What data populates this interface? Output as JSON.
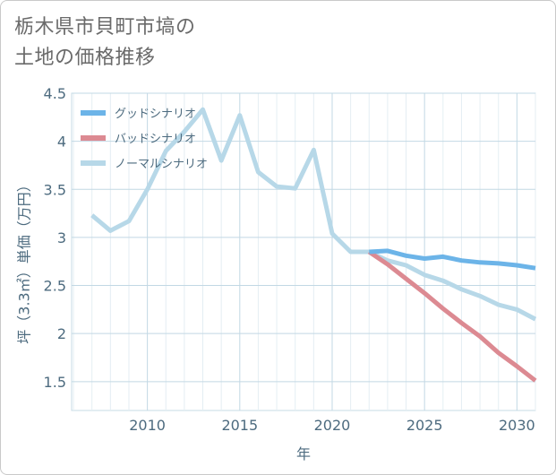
{
  "title": {
    "line1": "栃木県市貝町市塙の",
    "line2": "土地の価格推移"
  },
  "chart_data": {
    "type": "line",
    "xlabel": "年",
    "ylabel": "坪（3.3㎡）単価（万円）",
    "xlim": [
      2005.9,
      2031
    ],
    "ylim": [
      1.2,
      4.5
    ],
    "x_ticks": [
      2010,
      2015,
      2020,
      2025,
      2030
    ],
    "y_ticks": [
      1.5,
      2,
      2.5,
      3,
      3.5,
      4,
      4.5
    ],
    "y_tick_labels": [
      "1.5",
      "2",
      "2.5",
      "3",
      "3.5",
      "4",
      "4.5"
    ],
    "grid": true,
    "legend_position": "top-left",
    "series": [
      {
        "name": "グッドシナリオ",
        "color": "#6cb4e8",
        "x": [
          2022,
          2023,
          2024,
          2025,
          2026,
          2027,
          2028,
          2029,
          2030,
          2031
        ],
        "values": [
          2.85,
          2.86,
          2.81,
          2.78,
          2.8,
          2.76,
          2.74,
          2.73,
          2.71,
          2.68
        ]
      },
      {
        "name": "バッドシナリオ",
        "color": "#dc8a92",
        "x": [
          2022,
          2023,
          2024,
          2025,
          2026,
          2027,
          2028,
          2029,
          2030,
          2031
        ],
        "values": [
          2.85,
          2.72,
          2.57,
          2.42,
          2.26,
          2.11,
          1.97,
          1.8,
          1.66,
          1.51
        ]
      },
      {
        "name": "ノーマルシナリオ",
        "color": "#b7d8e8",
        "x": [
          2007,
          2008,
          2009,
          2010,
          2011,
          2012,
          2013,
          2014,
          2015,
          2016,
          2017,
          2018,
          2019,
          2020,
          2021,
          2022,
          2023,
          2024,
          2025,
          2026,
          2027,
          2028,
          2029,
          2030,
          2031
        ],
        "values": [
          3.23,
          3.07,
          3.17,
          3.5,
          3.9,
          4.1,
          4.33,
          3.8,
          4.27,
          3.68,
          3.53,
          3.51,
          3.91,
          3.04,
          2.85,
          2.85,
          2.76,
          2.71,
          2.61,
          2.55,
          2.46,
          2.39,
          2.3,
          2.25,
          2.15
        ]
      }
    ]
  }
}
